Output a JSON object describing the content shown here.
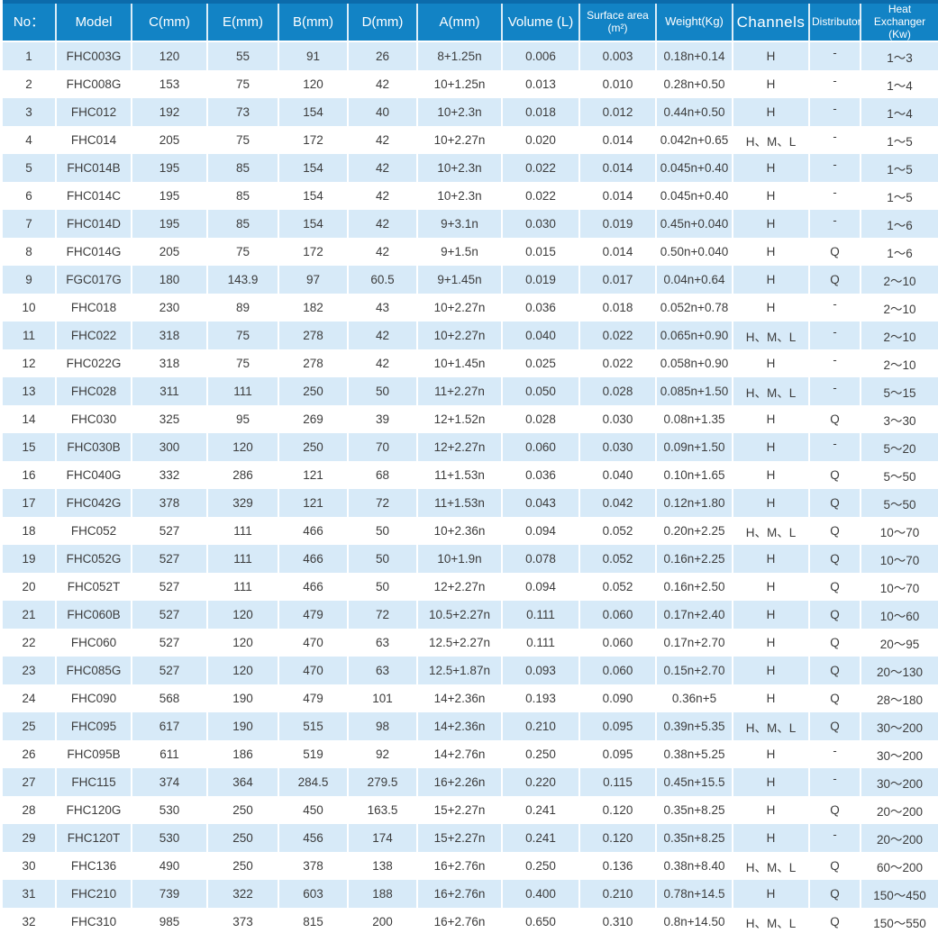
{
  "colors": {
    "header_bg": "#1283c5",
    "header_top": "#0c6bab",
    "header_text": "#ffffff",
    "row_alt": "#d7eaf8",
    "row_white": "#ffffff",
    "text": "#3c3c3c"
  },
  "table": {
    "columns": [
      {
        "label": "No："
      },
      {
        "label": "Model"
      },
      {
        "label": "C(mm)"
      },
      {
        "label": "E(mm)"
      },
      {
        "label": "B(mm)"
      },
      {
        "label": "D(mm)"
      },
      {
        "label": "A(mm)"
      },
      {
        "label": "Volume (L)"
      },
      {
        "label": "Surface area",
        "label2": "(m²)"
      },
      {
        "label": "Weight(Kg)"
      },
      {
        "label": "Channels"
      },
      {
        "label": "Distributor"
      },
      {
        "label": "Heat Exchanger",
        "label2": "(Kw)"
      }
    ],
    "rows": [
      [
        "1",
        "FHC003G",
        "120",
        "55",
        "91",
        "26",
        "8+1.25n",
        "0.006",
        "0.003",
        "0.18n+0.14",
        "H",
        "-",
        "1～3"
      ],
      [
        "2",
        "FHC008G",
        "153",
        "75",
        "120",
        "42",
        "10+1.25n",
        "0.013",
        "0.010",
        "0.28n+0.50",
        "H",
        "-",
        "1～4"
      ],
      [
        "3",
        "FHC012",
        "192",
        "73",
        "154",
        "40",
        "10+2.3n",
        "0.018",
        "0.012",
        "0.44n+0.50",
        "H",
        "-",
        "1～4"
      ],
      [
        "4",
        "FHC014",
        "205",
        "75",
        "172",
        "42",
        "10+2.27n",
        "0.020",
        "0.014",
        "0.042n+0.65",
        "H、M、L",
        "-",
        "1～5"
      ],
      [
        "5",
        "FHC014B",
        "195",
        "85",
        "154",
        "42",
        "10+2.3n",
        "0.022",
        "0.014",
        "0.045n+0.40",
        "H",
        "-",
        "1～5"
      ],
      [
        "6",
        "FHC014C",
        "195",
        "85",
        "154",
        "42",
        "10+2.3n",
        "0.022",
        "0.014",
        "0.045n+0.40",
        "H",
        "-",
        "1～5"
      ],
      [
        "7",
        "FHC014D",
        "195",
        "85",
        "154",
        "42",
        "9+3.1n",
        "0.030",
        "0.019",
        "0.45n+0.040",
        "H",
        "-",
        "1～6"
      ],
      [
        "8",
        "FHC014G",
        "205",
        "75",
        "172",
        "42",
        "9+1.5n",
        "0.015",
        "0.014",
        "0.50n+0.040",
        "H",
        "Q",
        "1～6"
      ],
      [
        "9",
        "FGC017G",
        "180",
        "143.9",
        "97",
        "60.5",
        "9+1.45n",
        "0.019",
        "0.017",
        "0.04n+0.64",
        "H",
        "Q",
        "2～10"
      ],
      [
        "10",
        "FHC018",
        "230",
        "89",
        "182",
        "43",
        "10+2.27n",
        "0.036",
        "0.018",
        "0.052n+0.78",
        "H",
        "-",
        "2～10"
      ],
      [
        "11",
        "FHC022",
        "318",
        "75",
        "278",
        "42",
        "10+2.27n",
        "0.040",
        "0.022",
        "0.065n+0.90",
        "H、M、L",
        "-",
        "2～10"
      ],
      [
        "12",
        "FHC022G",
        "318",
        "75",
        "278",
        "42",
        "10+1.45n",
        "0.025",
        "0.022",
        "0.058n+0.90",
        "H",
        "-",
        "2～10"
      ],
      [
        "13",
        "FHC028",
        "311",
        "111",
        "250",
        "50",
        "11+2.27n",
        "0.050",
        "0.028",
        "0.085n+1.50",
        "H、M、L",
        "-",
        "5～15"
      ],
      [
        "14",
        "FHC030",
        "325",
        "95",
        "269",
        "39",
        "12+1.52n",
        "0.028",
        "0.030",
        "0.08n+1.35",
        "H",
        "Q",
        "3～30"
      ],
      [
        "15",
        "FHC030B",
        "300",
        "120",
        "250",
        "70",
        "12+2.27n",
        "0.060",
        "0.030",
        "0.09n+1.50",
        "H",
        "-",
        "5～20"
      ],
      [
        "16",
        "FHC040G",
        "332",
        "286",
        "121",
        "68",
        "11+1.53n",
        "0.036",
        "0.040",
        "0.10n+1.65",
        "H",
        "Q",
        "5～50"
      ],
      [
        "17",
        "FHC042G",
        "378",
        "329",
        "121",
        "72",
        "11+1.53n",
        "0.043",
        "0.042",
        "0.12n+1.80",
        "H",
        "Q",
        "5～50"
      ],
      [
        "18",
        "FHC052",
        "527",
        "111",
        "466",
        "50",
        "10+2.36n",
        "0.094",
        "0.052",
        "0.20n+2.25",
        "H、M、L",
        "Q",
        "10～70"
      ],
      [
        "19",
        "FHC052G",
        "527",
        "111",
        "466",
        "50",
        "10+1.9n",
        "0.078",
        "0.052",
        "0.16n+2.25",
        "H",
        "Q",
        "10～70"
      ],
      [
        "20",
        "FHC052T",
        "527",
        "111",
        "466",
        "50",
        "12+2.27n",
        "0.094",
        "0.052",
        "0.16n+2.50",
        "H",
        "Q",
        "10～70"
      ],
      [
        "21",
        "FHC060B",
        "527",
        "120",
        "479",
        "72",
        "10.5+2.27n",
        "0.111",
        "0.060",
        "0.17n+2.40",
        "H",
        "Q",
        "10～60"
      ],
      [
        "22",
        "FHC060",
        "527",
        "120",
        "470",
        "63",
        "12.5+2.27n",
        "0.111",
        "0.060",
        "0.17n+2.70",
        "H",
        "Q",
        "20～95"
      ],
      [
        "23",
        "FHC085G",
        "527",
        "120",
        "470",
        "63",
        "12.5+1.87n",
        "0.093",
        "0.060",
        "0.15n+2.70",
        "H",
        "Q",
        "20～130"
      ],
      [
        "24",
        "FHC090",
        "568",
        "190",
        "479",
        "101",
        "14+2.36n",
        "0.193",
        "0.090",
        "0.36n+5",
        "H",
        "Q",
        "28～180"
      ],
      [
        "25",
        "FHC095",
        "617",
        "190",
        "515",
        "98",
        "14+2.36n",
        "0.210",
        "0.095",
        "0.39n+5.35",
        "H、M、L",
        "Q",
        "30～200"
      ],
      [
        "26",
        "FHC095B",
        "611",
        "186",
        "519",
        "92",
        "14+2.76n",
        "0.250",
        "0.095",
        "0.38n+5.25",
        "H",
        "-",
        "30～200"
      ],
      [
        "27",
        "FHC115",
        "374",
        "364",
        "284.5",
        "279.5",
        "16+2.26n",
        "0.220",
        "0.115",
        "0.45n+15.5",
        "H",
        "-",
        "30～200"
      ],
      [
        "28",
        "FHC120G",
        "530",
        "250",
        "450",
        "163.5",
        "15+2.27n",
        "0.241",
        "0.120",
        "0.35n+8.25",
        "H",
        "Q",
        "20～200"
      ],
      [
        "29",
        "FHC120T",
        "530",
        "250",
        "456",
        "174",
        "15+2.27n",
        "0.241",
        "0.120",
        "0.35n+8.25",
        "H",
        "-",
        "20～200"
      ],
      [
        "30",
        "FHC136",
        "490",
        "250",
        "378",
        "138",
        "16+2.76n",
        "0.250",
        "0.136",
        "0.38n+8.40",
        "H、M、L",
        "Q",
        "60～200"
      ],
      [
        "31",
        "FHC210",
        "739",
        "322",
        "603",
        "188",
        "16+2.76n",
        "0.400",
        "0.210",
        "0.78n+14.5",
        "H",
        "Q",
        "150～450"
      ],
      [
        "32",
        "FHC310",
        "985",
        "373",
        "815",
        "200",
        "16+2.76n",
        "0.650",
        "0.310",
        "0.8n+14.50",
        "H、M、L",
        "Q",
        "150～550"
      ]
    ]
  }
}
